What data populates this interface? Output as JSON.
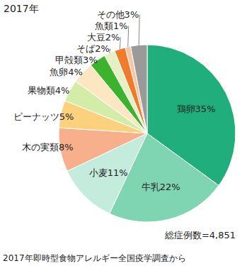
{
  "chart_data": {
    "type": "pie",
    "title": "2017年",
    "categories": [
      "鶏卵",
      "牛乳",
      "小麦",
      "木の実類",
      "ピーナッツ",
      "果物類",
      "魚卵",
      "甲殻類",
      "そば",
      "大豆",
      "魚類",
      "その他"
    ],
    "values": [
      35,
      22,
      11,
      8,
      5,
      4,
      4,
      3,
      2,
      2,
      1,
      3
    ],
    "value_labels": [
      "35%",
      "22%",
      "11%",
      "8%",
      "5%",
      "4%",
      "4%",
      "3%",
      "2%",
      "2%",
      "1%",
      "3%"
    ],
    "colors": [
      "#1fae7c",
      "#7fd4b2",
      "#c4ecdc",
      "#f8b08c",
      "#fbd17e",
      "#d3eda8",
      "#fde6c2",
      "#3db22c",
      "#e3f1c3",
      "#f07b2a",
      "#f6c7a6",
      "#9a9a9a"
    ],
    "data_labels": true,
    "annotations": [
      "総症例数=4,851",
      "2017年即時型食物アレルギー全国疫学調査から"
    ]
  }
}
